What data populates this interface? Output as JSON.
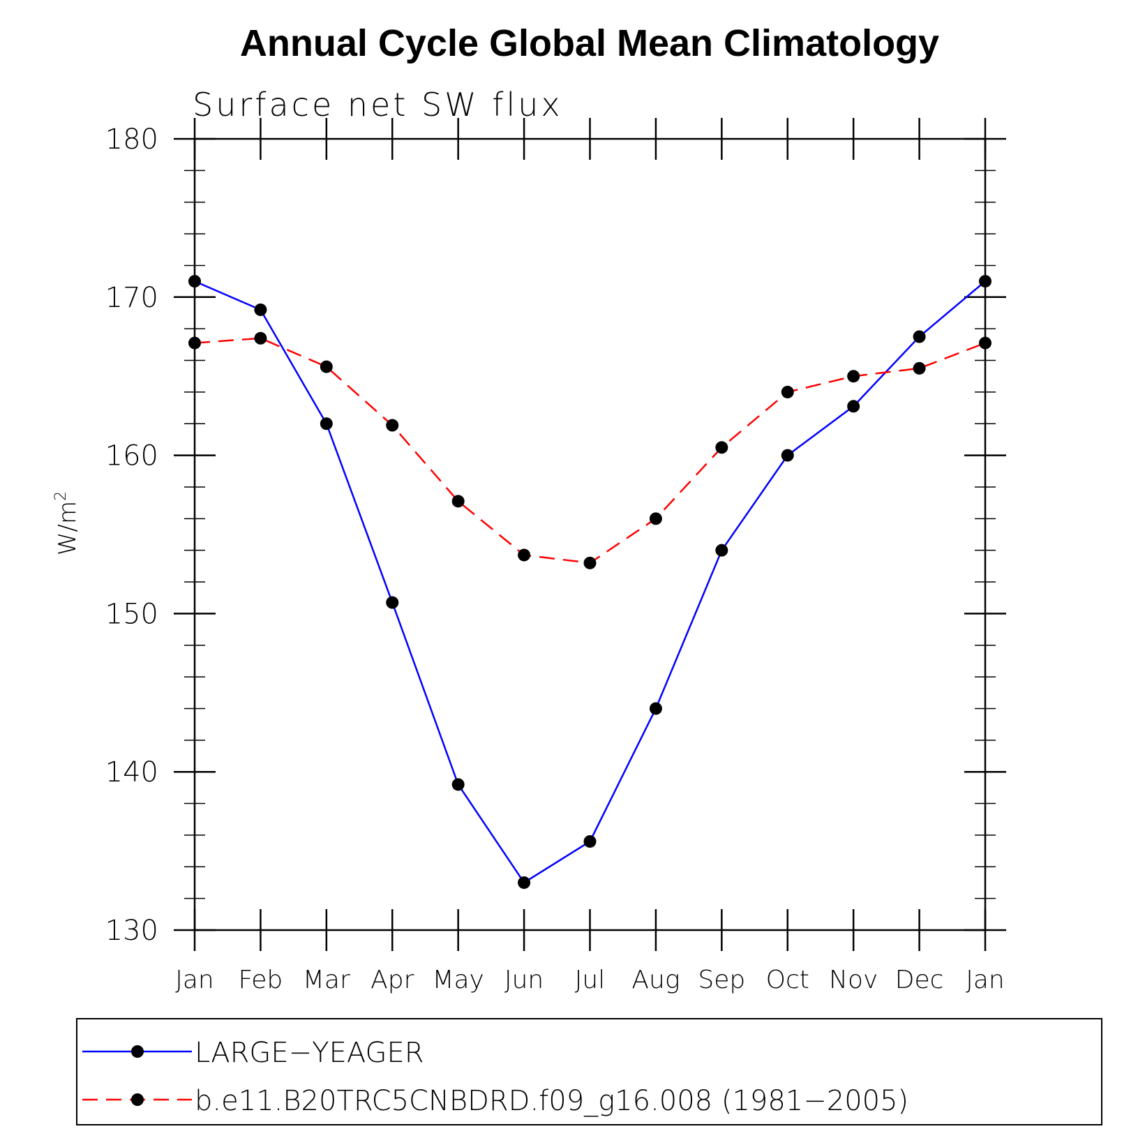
{
  "chart_data": {
    "type": "line",
    "title": "Annual Cycle Global Mean Climatology",
    "subtitle": "Surface net SW flux",
    "xlabel": "",
    "ylabel": "W/m",
    "ylabel_superscript": "2",
    "ylim": [
      130,
      180
    ],
    "yticks": [
      "130",
      "140",
      "150",
      "160",
      "170",
      "180"
    ],
    "categories": [
      "Jan",
      "Feb",
      "Mar",
      "Apr",
      "May",
      "Jun",
      "Jul",
      "Aug",
      "Sep",
      "Oct",
      "Nov",
      "Dec",
      "Jan"
    ],
    "grid": false,
    "legend_position": "bottom",
    "series": [
      {
        "name": "LARGE−YEAGER",
        "color": "#0000ff",
        "line_style": "solid",
        "marker": "filled-circle",
        "values": [
          171.0,
          169.2,
          162.0,
          150.7,
          139.2,
          133.0,
          135.6,
          144.0,
          154.0,
          160.0,
          163.1,
          167.5,
          171.0
        ]
      },
      {
        "name": "b.e11.B20TRC5CNBDRD.f09_g16.008 (1981−2005)",
        "color": "#ff0000",
        "line_style": "dashed",
        "marker": "filled-circle",
        "values": [
          167.1,
          167.4,
          165.6,
          161.9,
          157.1,
          153.7,
          153.2,
          156.0,
          160.5,
          164.0,
          165.0,
          165.5,
          167.1
        ]
      }
    ]
  }
}
